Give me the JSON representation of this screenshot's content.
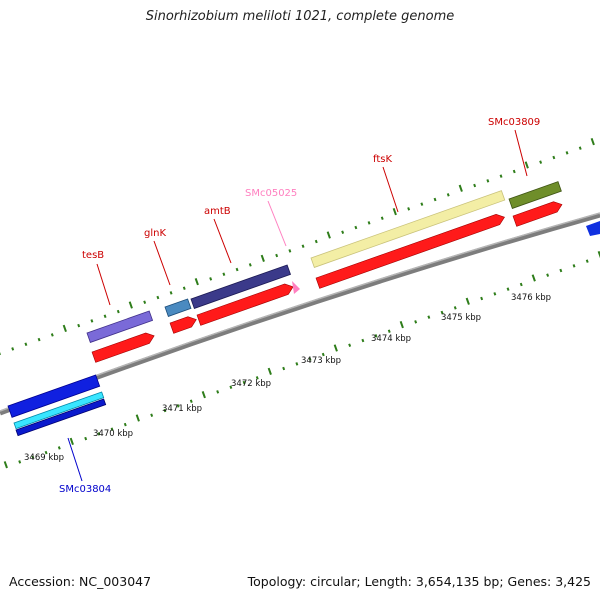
{
  "title": "Sinorhizobium meliloti 1021, complete genome",
  "accession": "Accession: NC_003047",
  "summary": "Topology: circular; Length: 3,654,135 bp; Genes: 3,425",
  "colors": {
    "backbone": "#8a8a8a",
    "tick": "#2e7d1a",
    "red_gene": "#ff1a1a",
    "red_label": "#cc0000",
    "pink_label": "#ff80c0",
    "blue_label": "#0000cc"
  },
  "scale_labels": [
    "3469 kbp",
    "3470 kbp",
    "3471 kbp",
    "3472 kbp",
    "3473 kbp",
    "3474 kbp",
    "3475 kbp",
    "3476 kbp"
  ],
  "genes": [
    {
      "name": "tesB",
      "color": "#cc0000",
      "label_color": "#cc0000",
      "strand": "forward"
    },
    {
      "name": "glnK",
      "color": "#cc0000",
      "label_color": "#cc0000",
      "strand": "forward"
    },
    {
      "name": "amtB",
      "color": "#cc0000",
      "label_color": "#cc0000",
      "strand": "forward"
    },
    {
      "name": "SMc05025",
      "color": "#ff80c0",
      "label_color": "#ff80c0",
      "strand": "forward"
    },
    {
      "name": "ftsK",
      "color": "#cc0000",
      "label_color": "#cc0000",
      "strand": "forward"
    },
    {
      "name": "SMc03809",
      "color": "#cc0000",
      "label_color": "#cc0000",
      "strand": "forward"
    },
    {
      "name": "SMc03804",
      "color": "#0000cc",
      "label_color": "#0000cc",
      "strand": "reverse"
    }
  ]
}
